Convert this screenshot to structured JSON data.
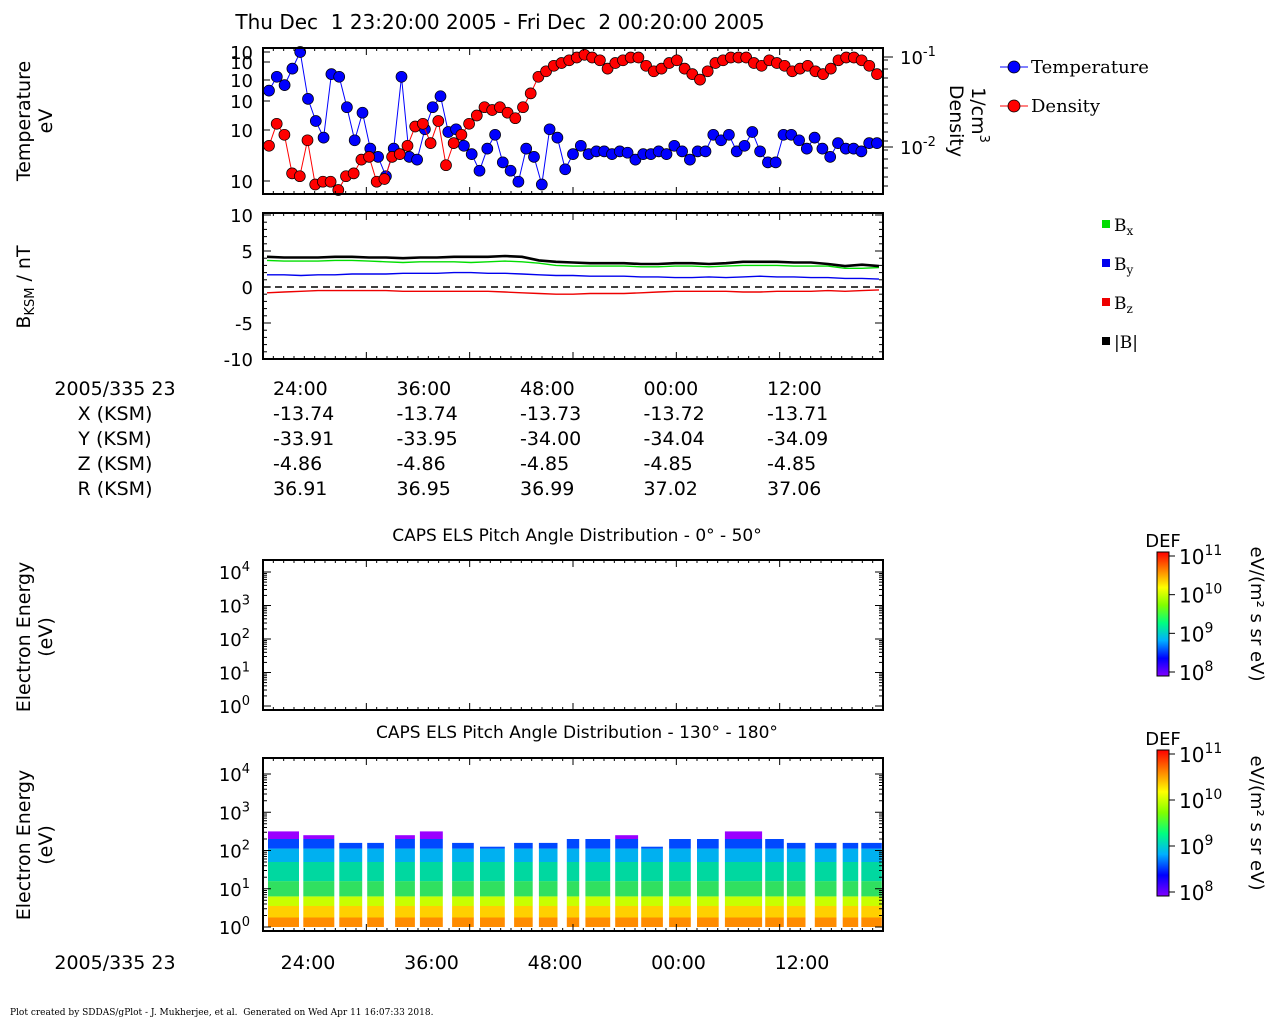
{
  "header": {
    "title": "Thu Dec  1 23:20:00 2005 - Fri Dec  2 00:20:00 2005"
  },
  "footer": {
    "credit": "Plot created by SDDAS/gPlot - J. Mukherjee, et al.  Generated on Wed Apr 11 16:07:33 2018."
  },
  "colors": {
    "temperature": "#0000ff",
    "density": "#ff0000",
    "bx": "#00dd00",
    "by": "#0000ee",
    "bz": "#ee0000",
    "btotal": "#000000",
    "colorbar": [
      "#8000ff",
      "#0000ff",
      "#00b0ff",
      "#00ff80",
      "#80ff00",
      "#ffff00",
      "#ff8000",
      "#ff0000"
    ]
  },
  "ephemeris": {
    "time_label": "2005/335 23",
    "rows": [
      {
        "label": "X (KSM)",
        "values": [
          "-13.74",
          "-13.74",
          "-13.73",
          "-13.72",
          "-13.71"
        ]
      },
      {
        "label": "Y (KSM)",
        "values": [
          "-33.91",
          "-33.95",
          "-34.00",
          "-34.04",
          "-34.09"
        ]
      },
      {
        "label": "Z (KSM)",
        "values": [
          "-4.86",
          "-4.86",
          "-4.85",
          "-4.85",
          "-4.85"
        ]
      },
      {
        "label": "R (KSM)",
        "values": [
          "36.91",
          "36.95",
          "36.99",
          "37.02",
          "37.06"
        ]
      }
    ]
  },
  "bottom_time_label": "2005/335 23",
  "chart_data": [
    {
      "id": "plasma_moments",
      "type": "scatter",
      "ylabel": "Temperature",
      "ylabel_unit": "eV",
      "y2label": "Density",
      "y2label_unit": "1/cm",
      "y2label_unit_sup": "3",
      "yticks": [
        "10",
        "10",
        "10",
        "10",
        "10",
        "10"
      ],
      "y2ticks": [
        {
          "base": "10",
          "exp": "-1"
        },
        {
          "base": "10",
          "exp": "-2"
        }
      ],
      "legend_position": "right",
      "series": [
        {
          "name": "Temperature",
          "color": "#0000ff",
          "values": [
            0.72,
            0.82,
            0.76,
            0.88,
            1.0,
            0.66,
            0.5,
            0.38,
            0.84,
            0.82,
            0.6,
            0.36,
            0.56,
            0.3,
            0.24,
            0.1,
            0.3,
            0.82,
            0.24,
            0.22,
            0.44,
            0.6,
            0.68,
            0.42,
            0.44,
            0.32,
            0.26,
            0.14,
            0.3,
            0.4,
            0.2,
            0.14,
            0.06,
            0.3,
            0.24,
            0.04,
            0.44,
            0.38,
            0.15,
            0.26,
            0.32,
            0.26,
            0.28,
            0.28,
            0.26,
            0.28,
            0.27,
            0.22,
            0.26,
            0.26,
            0.28,
            0.26,
            0.32,
            0.28,
            0.22,
            0.28,
            0.28,
            0.4,
            0.36,
            0.4,
            0.28,
            0.32,
            0.42,
            0.28,
            0.2,
            0.2,
            0.4,
            0.4,
            0.36,
            0.3,
            0.38,
            0.3,
            0.24,
            0.34,
            0.3,
            0.3,
            0.28,
            0.34,
            0.34
          ]
        },
        {
          "name": "Density",
          "color": "#ff0000",
          "values": [
            0.32,
            0.48,
            0.4,
            0.12,
            0.1,
            0.36,
            0.04,
            0.06,
            0.06,
            0.0,
            0.1,
            0.12,
            0.22,
            0.24,
            0.06,
            0.08,
            0.24,
            0.26,
            0.32,
            0.46,
            0.48,
            0.34,
            0.5,
            0.18,
            0.34,
            0.4,
            0.48,
            0.54,
            0.6,
            0.58,
            0.6,
            0.56,
            0.52,
            0.6,
            0.7,
            0.82,
            0.86,
            0.9,
            0.92,
            0.94,
            0.96,
            0.98,
            0.96,
            0.94,
            0.88,
            0.92,
            0.94,
            0.96,
            0.96,
            0.9,
            0.86,
            0.88,
            0.92,
            0.94,
            0.88,
            0.84,
            0.8,
            0.86,
            0.92,
            0.94,
            0.96,
            0.96,
            0.96,
            0.92,
            0.9,
            0.94,
            0.92,
            0.9,
            0.86,
            0.88,
            0.9,
            0.86,
            0.84,
            0.88,
            0.94,
            0.96,
            0.96,
            0.94,
            0.9,
            0.84
          ]
        }
      ]
    },
    {
      "id": "magnetic_field",
      "type": "line",
      "ylabel_main": "B",
      "ylabel_sub": "KSM",
      "ylabel_rest": " / nT",
      "ylim": [
        -10,
        10
      ],
      "yticks": [
        "10",
        "5",
        "0",
        "-5",
        "-10"
      ],
      "legend_position": "right",
      "series": [
        {
          "name": "B",
          "sub": "x",
          "color": "#00dd00",
          "values": [
            3.7,
            3.6,
            3.6,
            3.6,
            3.7,
            3.7,
            3.6,
            3.5,
            3.4,
            3.5,
            3.5,
            3.5,
            3.4,
            3.5,
            3.6,
            3.5,
            3.3,
            3.0,
            2.9,
            2.9,
            2.9,
            2.9,
            2.8,
            2.8,
            2.9,
            2.9,
            2.8,
            2.9,
            3.0,
            3.0,
            3.0,
            2.9,
            2.9,
            2.9,
            2.6,
            2.6,
            2.7
          ]
        },
        {
          "name": "B",
          "sub": "y",
          "color": "#0000ee",
          "values": [
            1.7,
            1.7,
            1.6,
            1.7,
            1.7,
            1.8,
            1.8,
            1.8,
            1.9,
            1.9,
            1.9,
            2.0,
            2.0,
            1.9,
            1.9,
            1.8,
            1.7,
            1.6,
            1.6,
            1.5,
            1.5,
            1.5,
            1.4,
            1.4,
            1.3,
            1.3,
            1.4,
            1.3,
            1.4,
            1.5,
            1.4,
            1.4,
            1.3,
            1.3,
            1.2,
            1.2,
            1.1
          ]
        },
        {
          "name": "B",
          "sub": "z",
          "color": "#ee0000",
          "values": [
            -0.8,
            -0.7,
            -0.6,
            -0.5,
            -0.5,
            -0.5,
            -0.5,
            -0.5,
            -0.6,
            -0.6,
            -0.6,
            -0.6,
            -0.6,
            -0.6,
            -0.7,
            -0.8,
            -0.9,
            -1.0,
            -1.0,
            -0.9,
            -0.9,
            -0.9,
            -0.8,
            -0.7,
            -0.6,
            -0.6,
            -0.6,
            -0.6,
            -0.7,
            -0.7,
            -0.6,
            -0.6,
            -0.6,
            -0.5,
            -0.6,
            -0.5,
            -0.4
          ]
        },
        {
          "name": "|B|",
          "sub": "",
          "color": "#000000",
          "values": [
            4.2,
            4.1,
            4.1,
            4.1,
            4.2,
            4.2,
            4.1,
            4.1,
            4.0,
            4.1,
            4.1,
            4.2,
            4.2,
            4.2,
            4.3,
            4.2,
            3.7,
            3.5,
            3.4,
            3.3,
            3.3,
            3.3,
            3.2,
            3.2,
            3.3,
            3.3,
            3.2,
            3.3,
            3.5,
            3.5,
            3.5,
            3.4,
            3.4,
            3.2,
            2.9,
            3.1,
            2.9
          ]
        }
      ]
    },
    {
      "id": "els_pad_0_50",
      "type": "heatmap",
      "title": "CAPS ELS Pitch Angle Distribution - 0° - 50°",
      "ylabel": "Electron Energy",
      "ylabel_unit": "(eV)",
      "yticks": [
        {
          "base": "10",
          "exp": "4"
        },
        {
          "base": "10",
          "exp": "3"
        },
        {
          "base": "10",
          "exp": "2"
        },
        {
          "base": "10",
          "exp": "1"
        },
        {
          "base": "10",
          "exp": "0"
        }
      ],
      "colorbar": {
        "label": "DEF",
        "units": "eV/(m² s sr eV)",
        "ticks": [
          {
            "base": "10",
            "exp": "11"
          },
          {
            "base": "10",
            "exp": "10"
          },
          {
            "base": "10",
            "exp": "9"
          },
          {
            "base": "10",
            "exp": "8"
          }
        ]
      },
      "blocks": []
    },
    {
      "id": "els_pad_130_180",
      "type": "heatmap",
      "title": "CAPS ELS Pitch Angle Distribution - 130° - 180°",
      "ylabel": "Electron Energy",
      "ylabel_unit": "(eV)",
      "yticks": [
        {
          "base": "10",
          "exp": "4"
        },
        {
          "base": "10",
          "exp": "3"
        },
        {
          "base": "10",
          "exp": "2"
        },
        {
          "base": "10",
          "exp": "1"
        },
        {
          "base": "10",
          "exp": "0"
        }
      ],
      "xticks": [
        "24:00",
        "36:00",
        "48:00",
        "00:00",
        "12:00"
      ],
      "colorbar": {
        "label": "DEF",
        "units": "eV/(m² s sr eV)",
        "ticks": [
          {
            "base": "10",
            "exp": "11"
          },
          {
            "base": "10",
            "exp": "10"
          },
          {
            "base": "10",
            "exp": "9"
          },
          {
            "base": "10",
            "exp": "8"
          }
        ]
      },
      "blocks": [
        {
          "t0": 0.008,
          "t1": 0.058,
          "top": 2.5
        },
        {
          "t0": 0.065,
          "t1": 0.115,
          "top": 2.4
        },
        {
          "t0": 0.123,
          "t1": 0.16,
          "top": 2.2
        },
        {
          "t0": 0.168,
          "t1": 0.195,
          "top": 2.2
        },
        {
          "t0": 0.213,
          "t1": 0.245,
          "top": 2.4
        },
        {
          "t0": 0.253,
          "t1": 0.29,
          "top": 2.5
        },
        {
          "t0": 0.305,
          "t1": 0.34,
          "top": 2.2
        },
        {
          "t0": 0.35,
          "t1": 0.39,
          "top": 2.1
        },
        {
          "t0": 0.405,
          "t1": 0.435,
          "top": 2.2
        },
        {
          "t0": 0.445,
          "t1": 0.475,
          "top": 2.2
        },
        {
          "t0": 0.49,
          "t1": 0.51,
          "top": 2.3
        },
        {
          "t0": 0.52,
          "t1": 0.56,
          "top": 2.3
        },
        {
          "t0": 0.568,
          "t1": 0.605,
          "top": 2.4
        },
        {
          "t0": 0.61,
          "t1": 0.645,
          "top": 2.1
        },
        {
          "t0": 0.655,
          "t1": 0.69,
          "top": 2.3
        },
        {
          "t0": 0.7,
          "t1": 0.735,
          "top": 2.3
        },
        {
          "t0": 0.745,
          "t1": 0.805,
          "top": 2.5
        },
        {
          "t0": 0.81,
          "t1": 0.84,
          "top": 2.3
        },
        {
          "t0": 0.845,
          "t1": 0.875,
          "top": 2.2
        },
        {
          "t0": 0.89,
          "t1": 0.925,
          "top": 2.2
        },
        {
          "t0": 0.935,
          "t1": 0.96,
          "top": 2.2
        },
        {
          "t0": 0.965,
          "t1": 0.998,
          "top": 2.2
        }
      ]
    }
  ]
}
